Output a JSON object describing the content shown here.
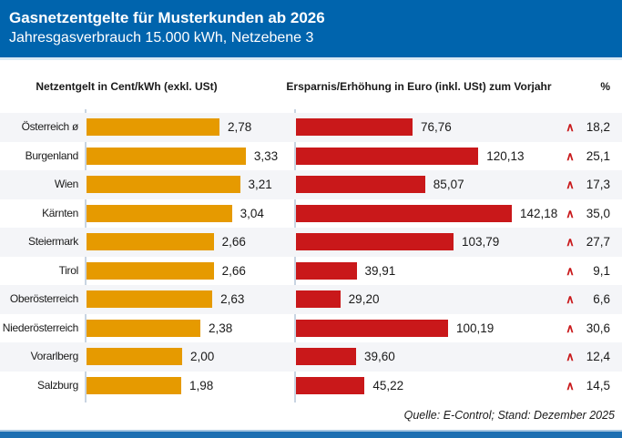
{
  "header": {
    "title": "Gasnetzentgelte für Musterkunden ab 2026",
    "subtitle": "Jahresgasverbrauch 15.000 kWh, Netzebene 3"
  },
  "columns": {
    "left": "Netzentgelt in Cent/kWh (exkl. USt)",
    "middle": "Ersparnis/Erhöhung in Euro (inkl. USt) zum Vorjahr",
    "right": "%"
  },
  "rows": [
    {
      "label": "Österreich ø",
      "net": "2,78",
      "net_value": 2.78,
      "euro": "76,76",
      "euro_value": 76.76,
      "pct": "18,2",
      "pct_value": 18.2,
      "trend": "up"
    },
    {
      "label": "Burgenland",
      "net": "3,33",
      "net_value": 3.33,
      "euro": "120,13",
      "euro_value": 120.13,
      "pct": "25,1",
      "pct_value": 25.1,
      "trend": "up"
    },
    {
      "label": "Wien",
      "net": "3,21",
      "net_value": 3.21,
      "euro": "85,07",
      "euro_value": 85.07,
      "pct": "17,3",
      "pct_value": 17.3,
      "trend": "up"
    },
    {
      "label": "Kärnten",
      "net": "3,04",
      "net_value": 3.04,
      "euro": "142,18",
      "euro_value": 142.18,
      "pct": "35,0",
      "pct_value": 35.0,
      "trend": "up"
    },
    {
      "label": "Steiermark",
      "net": "2,66",
      "net_value": 2.66,
      "euro": "103,79",
      "euro_value": 103.79,
      "pct": "27,7",
      "pct_value": 27.7,
      "trend": "up"
    },
    {
      "label": "Tirol",
      "net": "2,66",
      "net_value": 2.66,
      "euro": "39,91",
      "euro_value": 39.91,
      "pct": "9,1",
      "pct_value": 9.1,
      "trend": "up"
    },
    {
      "label": "Oberösterreich",
      "net": "2,63",
      "net_value": 2.63,
      "euro": "29,20",
      "euro_value": 29.2,
      "pct": "6,6",
      "pct_value": 6.6,
      "trend": "up"
    },
    {
      "label": "Niederösterreich",
      "net": "2,38",
      "net_value": 2.38,
      "euro": "100,19",
      "euro_value": 100.19,
      "pct": "30,6",
      "pct_value": 30.6,
      "trend": "up"
    },
    {
      "label": "Vorarlberg",
      "net": "2,00",
      "net_value": 2.0,
      "euro": "39,60",
      "euro_value": 39.6,
      "pct": "12,4",
      "pct_value": 12.4,
      "trend": "up"
    },
    {
      "label": "Salzburg",
      "net": "1,98",
      "net_value": 1.98,
      "euro": "45,22",
      "euro_value": 45.22,
      "pct": "14,5",
      "pct_value": 14.5,
      "trend": "up"
    }
  ],
  "icons": {
    "trend-up": "∧"
  },
  "footer": {
    "source": "Quelle: E-Control; Stand: Dezember 2025"
  },
  "colors": {
    "header_bg": "#0064AD",
    "bar_net": "#E69A00",
    "bar_euro": "#C9181A",
    "caret": "#C9181A",
    "row_stripe": "#F4F5F8",
    "axis_line": "#C8D4E2",
    "bottom_bar": "#1C6FB2"
  },
  "chart_data": {
    "type": "bar",
    "orientation": "horizontal",
    "title": "Gasnetzentgelte für Musterkunden ab 2026",
    "subtitle": "Jahresgasverbrauch 15.000 kWh, Netzebene 3",
    "categories": [
      "Österreich ø",
      "Burgenland",
      "Wien",
      "Kärnten",
      "Steiermark",
      "Tirol",
      "Oberösterreich",
      "Niederösterreich",
      "Vorarlberg",
      "Salzburg"
    ],
    "series": [
      {
        "name": "Netzentgelt in Cent/kWh (exkl. USt)",
        "color": "#E69A00",
        "values": [
          2.78,
          3.33,
          3.21,
          3.04,
          2.66,
          2.66,
          2.63,
          2.38,
          2.0,
          1.98
        ]
      },
      {
        "name": "Ersparnis/Erhöhung in Euro (inkl. USt) zum Vorjahr",
        "color": "#C9181A",
        "values": [
          76.76,
          120.13,
          85.07,
          142.18,
          103.79,
          39.91,
          29.2,
          100.19,
          39.6,
          45.22
        ]
      },
      {
        "name": "%",
        "values": [
          18.2,
          25.1,
          17.3,
          35.0,
          27.7,
          9.1,
          6.6,
          30.6,
          12.4,
          14.5
        ]
      }
    ],
    "legend": false,
    "grid": false,
    "value_labels": true,
    "note": "Quelle: E-Control; Stand: Dezember 2025"
  }
}
